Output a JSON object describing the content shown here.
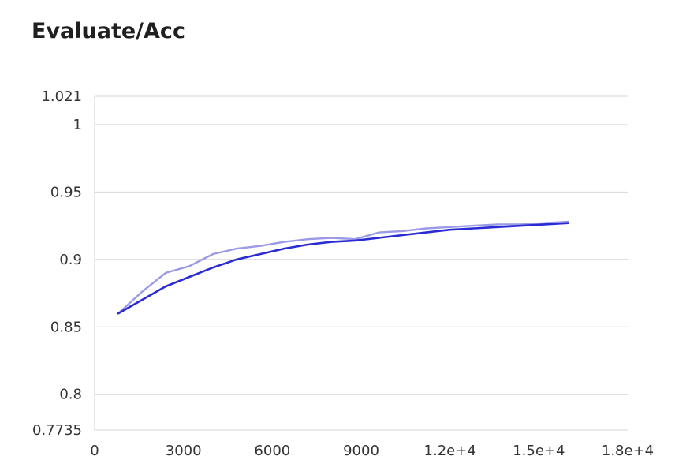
{
  "chart_data": {
    "type": "line",
    "title": "Evaluate/Acc",
    "xlabel": "",
    "ylabel": "",
    "xlim": [
      0,
      18000
    ],
    "ylim": [
      0.7735,
      1.021
    ],
    "grid": true,
    "x_ticks": [
      "0",
      "3000",
      "6000",
      "9000",
      "1.2e+4",
      "1.5e+4",
      "1.8e+4"
    ],
    "x_tick_values": [
      0,
      3000,
      6000,
      9000,
      12000,
      15000,
      18000
    ],
    "y_ticks": [
      "0.7735",
      "0.8",
      "0.85",
      "0.9",
      "0.95",
      "1",
      "1.021"
    ],
    "y_tick_values": [
      0.7735,
      0.8,
      0.85,
      0.9,
      0.95,
      1.0,
      1.021
    ],
    "series": [
      {
        "color": "#9a9ae6",
        "points": [
          [
            800,
            0.86
          ],
          [
            1600,
            0.876
          ],
          [
            2400,
            0.89
          ],
          [
            3200,
            0.895
          ],
          [
            4000,
            0.904
          ],
          [
            4800,
            0.908
          ],
          [
            5600,
            0.91
          ],
          [
            6400,
            0.913
          ],
          [
            7200,
            0.915
          ],
          [
            8000,
            0.916
          ],
          [
            8800,
            0.915
          ],
          [
            9600,
            0.92
          ],
          [
            10400,
            0.921
          ],
          [
            11200,
            0.923
          ],
          [
            12000,
            0.924
          ],
          [
            12800,
            0.925
          ],
          [
            13600,
            0.926
          ],
          [
            14400,
            0.926
          ],
          [
            15200,
            0.927
          ],
          [
            16000,
            0.928
          ]
        ]
      },
      {
        "color": "#2b2bd4",
        "points": [
          [
            800,
            0.86
          ],
          [
            1600,
            0.87
          ],
          [
            2400,
            0.88
          ],
          [
            3200,
            0.887
          ],
          [
            4000,
            0.894
          ],
          [
            4800,
            0.9
          ],
          [
            5600,
            0.904
          ],
          [
            6400,
            0.908
          ],
          [
            7200,
            0.911
          ],
          [
            8000,
            0.913
          ],
          [
            8800,
            0.914
          ],
          [
            9600,
            0.916
          ],
          [
            10400,
            0.918
          ],
          [
            11200,
            0.92
          ],
          [
            12000,
            0.922
          ],
          [
            12800,
            0.923
          ],
          [
            13600,
            0.924
          ],
          [
            14400,
            0.925
          ],
          [
            15200,
            0.926
          ],
          [
            16000,
            0.927
          ]
        ]
      }
    ]
  }
}
